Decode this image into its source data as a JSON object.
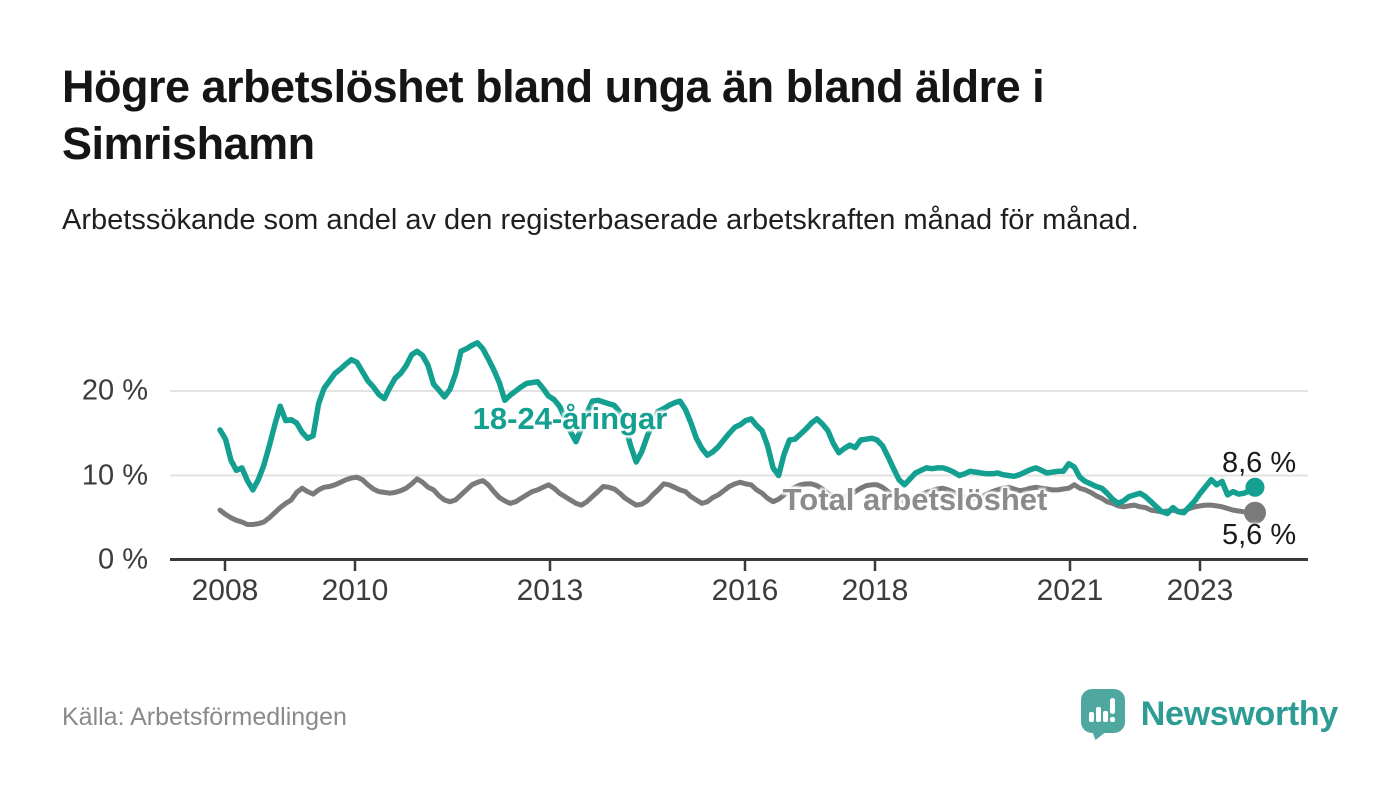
{
  "header": {
    "title": "Högre arbetslöshet bland unga än bland äldre i Simrishamn",
    "subtitle": "Arbetssökande som andel av den registerbaserade arbetskraften månad för månad."
  },
  "footer": {
    "source": "Källa: Arbetsförmedlingen",
    "brand": "Newsworthy"
  },
  "colors": {
    "teal": "#14A091",
    "gray": "#7A7A7A",
    "gray_label": "#8B8B8B",
    "axis": "#3A3A3A",
    "grid": "#E2E2E2",
    "end_label": "#1A1A1A",
    "logo_icon": "#4FA8A0",
    "logo_text": "#2D9C95"
  },
  "chart_data": {
    "type": "line",
    "title": "Högre arbetslöshet bland unga än bland äldre i Simrishamn",
    "subtitle": "Arbetssökande som andel av den registerbaserade arbetskraften månad för månad.",
    "unit": "%",
    "frequency": "monthly",
    "x_start": "2008-01",
    "x_end": "2023-10",
    "ylim": [
      0,
      27
    ],
    "grid": "horizontal",
    "legend_position": "inline-labels",
    "y_ticks": [
      {
        "label": "0 %",
        "value": 0
      },
      {
        "label": "10 %",
        "value": 10
      },
      {
        "label": "20 %",
        "value": 20
      }
    ],
    "x_ticks": [
      "2008",
      "2010",
      "2013",
      "2016",
      "2018",
      "2021",
      "2023"
    ],
    "series": [
      {
        "name": "18-24-åringar",
        "color": "#14A091",
        "end_label": "8,6 %",
        "end_value": 8.6,
        "values": [
          15.4,
          14.3,
          11.8,
          10.6,
          10.9,
          9.4,
          8.3,
          9.5,
          11.2,
          13.5,
          16.0,
          18.2,
          16.5,
          16.6,
          16.2,
          15.1,
          14.4,
          14.7,
          18.5,
          20.3,
          21.2,
          22.1,
          22.6,
          23.2,
          23.7,
          23.4,
          22.3,
          21.2,
          20.5,
          19.6,
          19.1,
          20.4,
          21.5,
          22.1,
          23.0,
          24.3,
          24.7,
          24.2,
          23.0,
          20.8,
          20.1,
          19.3,
          20.2,
          22.0,
          24.7,
          25.0,
          25.4,
          25.7,
          25.0,
          23.8,
          22.5,
          21.0,
          18.9,
          19.5,
          20.0,
          20.5,
          20.9,
          21.0,
          21.1,
          20.3,
          19.4,
          19.0,
          18.2,
          16.8,
          15.2,
          14.0,
          15.6,
          17.4,
          18.8,
          18.9,
          18.7,
          18.5,
          18.3,
          17.5,
          15.8,
          13.5,
          11.6,
          12.8,
          14.6,
          16.2,
          17.6,
          17.9,
          18.3,
          18.6,
          18.8,
          17.8,
          16.2,
          14.4,
          13.2,
          12.4,
          12.8,
          13.4,
          14.2,
          15.0,
          15.7,
          16.0,
          16.5,
          16.7,
          15.9,
          15.3,
          13.5,
          10.9,
          10.0,
          12.5,
          14.2,
          14.3,
          14.9,
          15.5,
          16.2,
          16.7,
          16.1,
          15.3,
          13.8,
          12.7,
          13.2,
          13.6,
          13.3,
          14.2,
          14.3,
          14.4,
          14.2,
          13.5,
          12.2,
          10.8,
          9.5,
          8.9,
          9.6,
          10.3,
          10.6,
          10.9,
          10.8,
          10.9,
          10.9,
          10.7,
          10.4,
          10.0,
          10.2,
          10.5,
          10.4,
          10.3,
          10.2,
          10.2,
          10.3,
          10.1,
          10.0,
          9.9,
          10.1,
          10.4,
          10.7,
          10.9,
          10.6,
          10.3,
          10.4,
          10.5,
          10.5,
          11.4,
          11.0,
          9.8,
          9.3,
          9.0,
          8.7,
          8.5,
          7.9,
          7.2,
          6.7,
          7.0,
          7.5,
          7.7,
          7.9,
          7.5,
          6.9,
          6.3,
          5.7,
          5.5,
          6.2,
          5.7,
          5.6,
          6.3,
          7.0,
          7.9,
          8.7,
          9.5,
          8.9,
          9.3,
          7.7,
          8.1,
          7.8,
          7.9,
          8.2,
          8.6
        ]
      },
      {
        "name": "Total arbetslöshet",
        "color": "#7A7A7A",
        "end_label": "5,6 %",
        "end_value": 5.6,
        "values": [
          5.9,
          5.4,
          5.0,
          4.7,
          4.5,
          4.2,
          4.2,
          4.3,
          4.5,
          5.0,
          5.6,
          6.2,
          6.7,
          7.1,
          8.0,
          8.5,
          8.1,
          7.8,
          8.3,
          8.6,
          8.7,
          8.9,
          9.2,
          9.5,
          9.7,
          9.8,
          9.5,
          8.9,
          8.4,
          8.1,
          8.0,
          7.9,
          8.0,
          8.2,
          8.5,
          9.0,
          9.6,
          9.2,
          8.6,
          8.3,
          7.6,
          7.1,
          6.9,
          7.1,
          7.7,
          8.3,
          8.9,
          9.2,
          9.4,
          8.9,
          8.1,
          7.4,
          7.0,
          6.7,
          6.9,
          7.3,
          7.7,
          8.1,
          8.3,
          8.6,
          8.9,
          8.5,
          7.9,
          7.5,
          7.1,
          6.7,
          6.5,
          6.9,
          7.5,
          8.1,
          8.7,
          8.6,
          8.4,
          7.9,
          7.3,
          6.9,
          6.5,
          6.6,
          7.0,
          7.7,
          8.3,
          9.0,
          8.9,
          8.6,
          8.3,
          8.1,
          7.5,
          7.1,
          6.7,
          6.9,
          7.4,
          7.7,
          8.2,
          8.7,
          9.0,
          9.2,
          9.0,
          8.9,
          8.3,
          7.9,
          7.3,
          6.9,
          7.2,
          7.7,
          8.2,
          8.6,
          8.9,
          9.0,
          9.0,
          8.8,
          8.4,
          7.9,
          7.5,
          7.2,
          7.4,
          7.7,
          8.1,
          8.5,
          8.8,
          8.9,
          8.9,
          8.6,
          8.1,
          7.6,
          7.2,
          6.9,
          7.1,
          7.4,
          7.7,
          8.0,
          8.2,
          8.4,
          8.5,
          8.3,
          8.0,
          7.7,
          7.4,
          7.2,
          7.3,
          7.5,
          7.8,
          8.1,
          8.3,
          8.5,
          8.6,
          8.4,
          8.2,
          8.3,
          8.5,
          8.6,
          8.5,
          8.4,
          8.3,
          8.3,
          8.4,
          8.5,
          8.9,
          8.5,
          8.3,
          8.0,
          7.6,
          7.3,
          6.9,
          6.7,
          6.4,
          6.3,
          6.4,
          6.5,
          6.3,
          6.2,
          5.9,
          5.8,
          5.7,
          5.8,
          5.9,
          5.7,
          5.8,
          6.1,
          6.3,
          6.4,
          6.5,
          6.5,
          6.4,
          6.3,
          6.1,
          5.9,
          5.8,
          5.7,
          5.6,
          5.6
        ]
      }
    ]
  }
}
